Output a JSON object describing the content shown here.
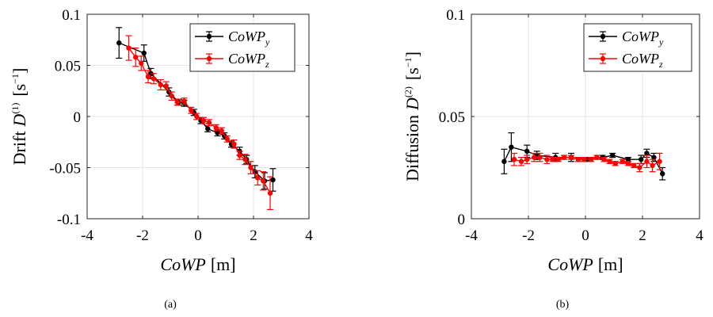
{
  "chart_data": [
    {
      "type": "scatter",
      "panel_label": "(a)",
      "ylabel_prefix": "Drift",
      "ylabel_symbol": "D",
      "ylabel_superscript": "(1)",
      "ylabel_unit": "[s",
      "ylabel_unit_exp": "−1",
      "ylabel_unit_close": "]",
      "xlabel_symbol": "CoWP",
      "xlabel_unit": "[m]",
      "xlim": [
        -4,
        4
      ],
      "ylim": [
        -0.1,
        0.1
      ],
      "xticks": [
        "-4",
        "-2",
        "0",
        "2",
        "4"
      ],
      "xtick_values": [
        -4,
        -2,
        0,
        2,
        4
      ],
      "yticks": [
        "0.1",
        "0.05",
        "0",
        "-0.05",
        "-0.1"
      ],
      "ytick_values": [
        0.1,
        0.05,
        0,
        -0.05,
        -0.1
      ],
      "legend_position": "top-right",
      "series": [
        {
          "name": "CoWP",
          "name_sub": "y",
          "color": "#000000",
          "x": [
            -2.85,
            -1.95,
            -1.7,
            -1.05,
            -0.7,
            -0.5,
            -0.15,
            0.1,
            0.35,
            0.7,
            0.95,
            1.2,
            1.5,
            1.75,
            2.05,
            2.4,
            2.7
          ],
          "y": [
            0.072,
            0.062,
            0.042,
            0.024,
            0.014,
            0.013,
            0.004,
            -0.004,
            -0.012,
            -0.016,
            -0.019,
            -0.027,
            -0.034,
            -0.042,
            -0.054,
            -0.063,
            -0.062
          ],
          "err": [
            0.015,
            0.008,
            0.005,
            0.004,
            0.003,
            0.003,
            0.003,
            0.003,
            0.003,
            0.003,
            0.003,
            0.003,
            0.004,
            0.004,
            0.006,
            0.008,
            0.011
          ]
        },
        {
          "name": "CoWP",
          "name_sub": "z",
          "color": "#ff0000",
          "x": [
            -2.5,
            -2.25,
            -2.05,
            -1.8,
            -1.6,
            -1.35,
            -1.15,
            -0.95,
            -0.75,
            -0.5,
            -0.25,
            -0.05,
            0.2,
            0.4,
            0.65,
            0.85,
            1.05,
            1.3,
            1.5,
            1.7,
            1.9,
            2.15,
            2.35,
            2.6
          ],
          "y": [
            0.067,
            0.058,
            0.052,
            0.039,
            0.037,
            0.031,
            0.03,
            0.02,
            0.014,
            0.015,
            0.006,
            0.0,
            -0.004,
            -0.006,
            -0.011,
            -0.014,
            -0.022,
            -0.027,
            -0.038,
            -0.042,
            -0.05,
            -0.06,
            -0.063,
            -0.075
          ],
          "err": [
            0.012,
            0.009,
            0.007,
            0.006,
            0.005,
            0.005,
            0.004,
            0.004,
            0.003,
            0.003,
            0.003,
            0.003,
            0.003,
            0.003,
            0.003,
            0.003,
            0.003,
            0.004,
            0.004,
            0.005,
            0.006,
            0.007,
            0.009,
            0.016
          ]
        }
      ]
    },
    {
      "type": "scatter",
      "panel_label": "(b)",
      "ylabel_prefix": "Diffusion",
      "ylabel_symbol": "D",
      "ylabel_superscript": "(2)",
      "ylabel_unit": "[s",
      "ylabel_unit_exp": "−1",
      "ylabel_unit_close": "]",
      "xlabel_symbol": "CoWP",
      "xlabel_unit": "[m]",
      "xlim": [
        -4,
        4
      ],
      "ylim": [
        0,
        0.1
      ],
      "xticks": [
        "-4",
        "-2",
        "0",
        "2",
        "4"
      ],
      "xtick_values": [
        -4,
        -2,
        0,
        2,
        4
      ],
      "yticks": [
        "0.1",
        "0.05",
        "0"
      ],
      "ytick_values": [
        0.1,
        0.05,
        0
      ],
      "legend_position": "top-right",
      "series": [
        {
          "name": "CoWP",
          "name_sub": "y",
          "color": "#000000",
          "x": [
            -2.85,
            -2.6,
            -2.05,
            -1.7,
            -1.05,
            -0.5,
            0.05,
            0.6,
            0.95,
            1.5,
            1.95,
            2.15,
            2.4,
            2.7
          ],
          "y": [
            0.028,
            0.035,
            0.033,
            0.031,
            0.03,
            0.03,
            0.029,
            0.03,
            0.031,
            0.029,
            0.029,
            0.032,
            0.03,
            0.022
          ],
          "err": [
            0.006,
            0.007,
            0.003,
            0.002,
            0.002,
            0.002,
            0.001,
            0.001,
            0.001,
            0.001,
            0.002,
            0.002,
            0.002,
            0.003
          ]
        },
        {
          "name": "CoWP",
          "name_sub": "z",
          "color": "#ff0000",
          "x": [
            -2.5,
            -2.25,
            -2.05,
            -1.8,
            -1.6,
            -1.35,
            -1.15,
            -0.95,
            -0.75,
            -0.5,
            -0.25,
            -0.05,
            0.2,
            0.4,
            0.65,
            0.85,
            1.05,
            1.3,
            1.5,
            1.7,
            1.9,
            2.15,
            2.35,
            2.6
          ],
          "y": [
            0.029,
            0.028,
            0.029,
            0.03,
            0.03,
            0.029,
            0.029,
            0.029,
            0.03,
            0.03,
            0.029,
            0.029,
            0.029,
            0.03,
            0.029,
            0.028,
            0.027,
            0.028,
            0.027,
            0.026,
            0.025,
            0.028,
            0.026,
            0.028
          ],
          "err": [
            0.003,
            0.002,
            0.002,
            0.002,
            0.002,
            0.002,
            0.001,
            0.001,
            0.001,
            0.001,
            0.001,
            0.001,
            0.001,
            0.001,
            0.001,
            0.001,
            0.001,
            0.001,
            0.001,
            0.001,
            0.002,
            0.003,
            0.003,
            0.004
          ]
        }
      ]
    }
  ]
}
